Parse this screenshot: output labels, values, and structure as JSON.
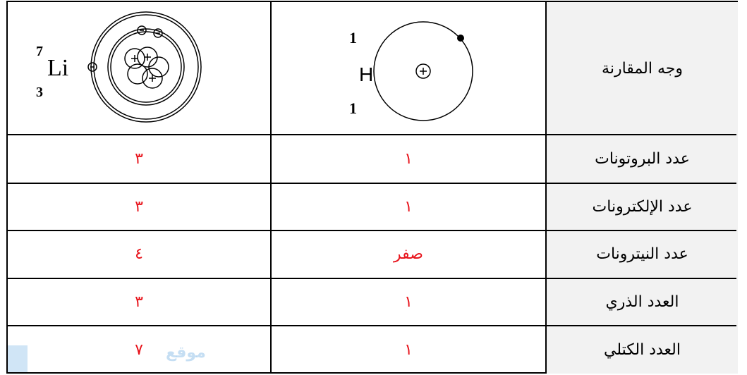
{
  "table": {
    "header": {
      "label": "وجه المقارنة",
      "hydrogen": {
        "mass_number": "1",
        "atomic_number": "1",
        "symbol": "H"
      },
      "lithium": {
        "mass_number": "7",
        "atomic_number": "3",
        "symbol": "Li"
      }
    },
    "rows": [
      [
        "عدد البروتونات",
        "١",
        "٣"
      ],
      [
        "عدد الإلكترونات",
        "١",
        "٣"
      ],
      [
        "عدد النيترونات",
        "صفر",
        "٤"
      ],
      [
        "العدد الذري",
        "١",
        "٣"
      ],
      [
        "العدد الكتلي",
        "١",
        "٧"
      ]
    ]
  },
  "watermark": "موقع"
}
